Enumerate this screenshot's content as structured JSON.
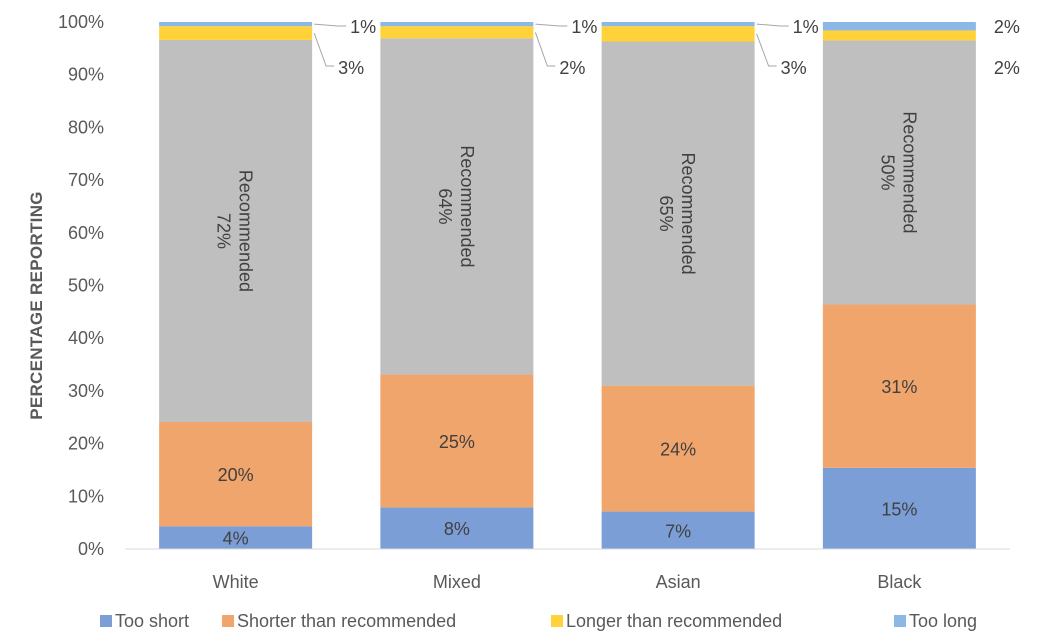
{
  "chart_data": {
    "type": "bar",
    "stacked": true,
    "ylabel": "PERCENTAGE REPORTING",
    "ylim": [
      0,
      100
    ],
    "yticks": [
      "0%",
      "10%",
      "20%",
      "30%",
      "40%",
      "50%",
      "60%",
      "70%",
      "80%",
      "90%",
      "100%"
    ],
    "categories": [
      "White",
      "Mixed",
      "Asian",
      "Black"
    ],
    "series": [
      {
        "name": "Too short",
        "color": "#7b9ed6",
        "values": [
          4.3,
          7.9,
          7.1,
          15.4
        ],
        "labels": [
          "4%",
          "8%",
          "7%",
          "15%"
        ]
      },
      {
        "name": "Shorter than recommended",
        "color": "#f0a56c",
        "values": [
          19.8,
          25.2,
          23.9,
          31.0
        ],
        "labels": [
          "20%",
          "25%",
          "24%",
          "31%"
        ]
      },
      {
        "name": "Recommended",
        "color": "#bfbfbf",
        "values": [
          72.5,
          63.8,
          65.3,
          50.1
        ],
        "labels": [
          "72%",
          "64%",
          "65%",
          "50%"
        ],
        "label_prefix": "Recommended"
      },
      {
        "name": "Longer than recommended",
        "color": "#ffd23a",
        "values": [
          2.6,
          2.3,
          2.9,
          1.9
        ],
        "labels": [
          "3%",
          "2%",
          "3%",
          "2%"
        ]
      },
      {
        "name": "Too long",
        "color": "#8db8e6",
        "values": [
          0.8,
          0.8,
          0.8,
          1.6
        ],
        "labels": [
          "1%",
          "1%",
          "1%",
          "2%"
        ]
      }
    ],
    "legend": {
      "placement": "bottom",
      "entries": [
        "Too short",
        "Shorter than recommended",
        "Longer than recommended",
        "Too long"
      ]
    },
    "grid": false
  }
}
